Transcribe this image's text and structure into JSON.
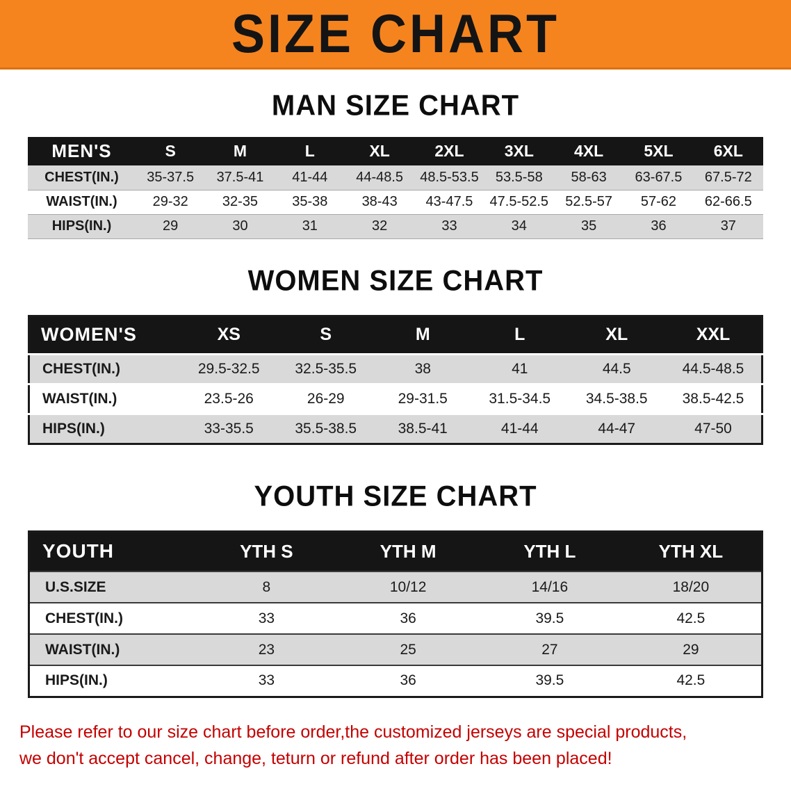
{
  "banner": {
    "title": "SIZE CHART"
  },
  "colors": {
    "banner_bg": "#f5841f",
    "table_header_bg": "#151515",
    "row_shade": "#d9d9d9",
    "notice_text": "#c40000"
  },
  "men": {
    "heading": "MAN SIZE CHART",
    "table": {
      "header": [
        "MEN'S",
        "S",
        "M",
        "L",
        "XL",
        "2XL",
        "3XL",
        "4XL",
        "5XL",
        "6XL"
      ],
      "rows": [
        [
          "CHEST(IN.)",
          "35-37.5",
          "37.5-41",
          "41-44",
          "44-48.5",
          "48.5-53.5",
          "53.5-58",
          "58-63",
          "63-67.5",
          "67.5-72"
        ],
        [
          "WAIST(IN.)",
          "29-32",
          "32-35",
          "35-38",
          "38-43",
          "43-47.5",
          "47.5-52.5",
          "52.5-57",
          "57-62",
          "62-66.5"
        ],
        [
          "HIPS(IN.)",
          "29",
          "30",
          "31",
          "32",
          "33",
          "34",
          "35",
          "36",
          "37"
        ]
      ]
    }
  },
  "women": {
    "heading": "WOMEN SIZE CHART",
    "table": {
      "header": [
        "WOMEN'S",
        "XS",
        "S",
        "M",
        "L",
        "XL",
        "XXL"
      ],
      "rows": [
        [
          "CHEST(IN.)",
          "29.5-32.5",
          "32.5-35.5",
          "38",
          "41",
          "44.5",
          "44.5-48.5"
        ],
        [
          "WAIST(IN.)",
          "23.5-26",
          "26-29",
          "29-31.5",
          "31.5-34.5",
          "34.5-38.5",
          "38.5-42.5"
        ],
        [
          "HIPS(IN.)",
          "33-35.5",
          "35.5-38.5",
          "38.5-41",
          "41-44",
          "44-47",
          "47-50"
        ]
      ]
    }
  },
  "youth": {
    "heading": "YOUTH SIZE CHART",
    "table": {
      "header": [
        "YOUTH",
        "YTH S",
        "YTH M",
        "YTH L",
        "YTH XL"
      ],
      "rows": [
        [
          "U.S.SIZE",
          "8",
          "10/12",
          "14/16",
          "18/20"
        ],
        [
          "CHEST(IN.)",
          "33",
          "36",
          "39.5",
          "42.5"
        ],
        [
          "WAIST(IN.)",
          "23",
          "25",
          "27",
          "29"
        ],
        [
          "HIPS(IN.)",
          "33",
          "36",
          "39.5",
          "42.5"
        ]
      ]
    }
  },
  "footer": {
    "line1": "Please refer to our size chart before order,the customized jerseys are special products,",
    "line2": "we don't accept cancel, change, teturn or refund after order has been placed!"
  }
}
